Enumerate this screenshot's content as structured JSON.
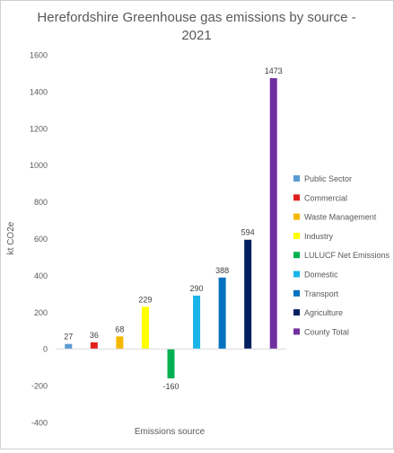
{
  "chart_data": {
    "type": "bar",
    "title_lines": [
      "Herefordshire Greenhouse gas emissions by source -",
      "2021"
    ],
    "xlabel": "Emissions source",
    "ylabel": "kt CO2e",
    "ylim": [
      -400,
      1600
    ],
    "yticks": [
      -400,
      -200,
      0,
      200,
      400,
      600,
      800,
      1000,
      1200,
      1400,
      1600
    ],
    "grid": false,
    "legend_position": "right",
    "series": [
      {
        "name": "Public Sector",
        "value": 27,
        "label": "27",
        "color": "#5b9bd5"
      },
      {
        "name": "Commercial",
        "value": 36,
        "label": "36",
        "color": "#e02020"
      },
      {
        "name": "Waste Management",
        "value": 68,
        "label": "68",
        "color": "#f5b800"
      },
      {
        "name": "Industry",
        "value": 229,
        "label": "229",
        "color": "#ffff00"
      },
      {
        "name": "LULUCF Net Emissions",
        "value": -160,
        "label": "-160",
        "color": "#00b050"
      },
      {
        "name": "Domestic",
        "value": 290,
        "label": "290",
        "color": "#1ab4e8"
      },
      {
        "name": "Transport",
        "value": 388,
        "label": "388",
        "color": "#0070c0"
      },
      {
        "name": "Agriculture",
        "value": 594,
        "label": "594",
        "color": "#002060"
      },
      {
        "name": "County Total",
        "value": 1473,
        "label": "1473",
        "color": "#7030a0"
      }
    ]
  }
}
